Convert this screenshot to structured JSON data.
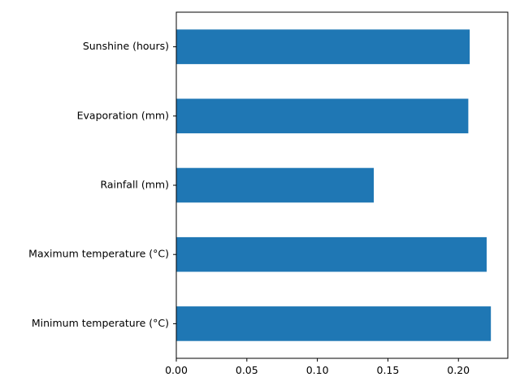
{
  "chart_data": {
    "type": "bar",
    "orientation": "horizontal",
    "categories": [
      "Minimum temperature (°C)",
      "Maximum temperature (°C)",
      "Rainfall (mm)",
      "Evaporation (mm)",
      "Sunshine (hours)"
    ],
    "values": [
      0.223,
      0.22,
      0.14,
      0.207,
      0.208
    ],
    "xlim": [
      0,
      0.235
    ],
    "xticks": [
      0.0,
      0.05,
      0.1,
      0.15,
      0.2,
      0.25
    ],
    "xtick_labels": [
      "0.00",
      "0.05",
      "0.10",
      "0.15",
      "0.20"
    ],
    "title": "",
    "xlabel": "",
    "ylabel": "",
    "grid": false,
    "bar_color": "#1f77b4"
  }
}
